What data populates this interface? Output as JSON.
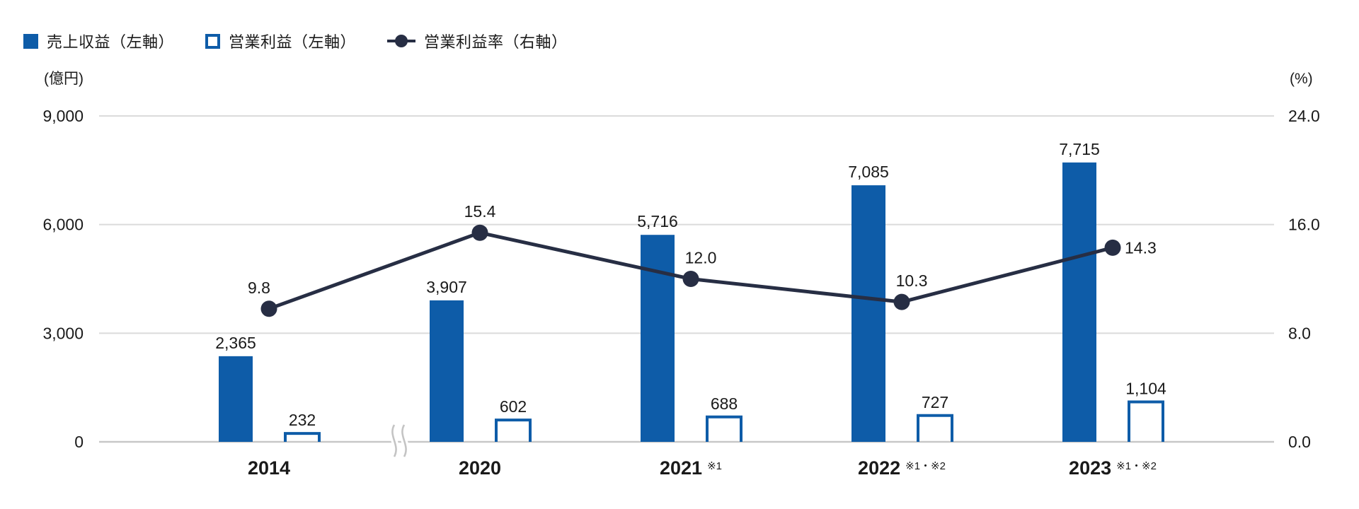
{
  "legend": {
    "items": [
      {
        "key": "revenue",
        "label": "売上収益（左軸）",
        "marker": "solid-square"
      },
      {
        "key": "profit",
        "label": "営業利益（左軸）",
        "marker": "outline-square"
      },
      {
        "key": "margin",
        "label": "営業利益率（右軸）",
        "marker": "line-dot"
      }
    ]
  },
  "chart_data": {
    "type": "bar-line-combo",
    "categories": [
      "2014",
      "2020",
      "2021",
      "2022",
      "2023"
    ],
    "category_notes": [
      "",
      "",
      "※1",
      "※1・※2",
      "※1・※2"
    ],
    "axis_break_after_index": 0,
    "left_axis": {
      "unit": "(億円)",
      "max": 9000,
      "min": 0,
      "ticks": [
        9000,
        6000,
        3000,
        0
      ],
      "tick_labels": [
        "9,000",
        "6,000",
        "3,000",
        "0"
      ]
    },
    "right_axis": {
      "unit": "(%)",
      "max": 24.0,
      "min": 0,
      "ticks": [
        24,
        16,
        8,
        0
      ],
      "tick_labels": [
        "24.0",
        "16.0",
        "8.0",
        "0.0"
      ]
    },
    "series": [
      {
        "key": "revenue",
        "name": "売上収益（左軸）",
        "type": "bar",
        "style": "solid",
        "axis": "left",
        "values": [
          2365,
          3907,
          5716,
          7085,
          7715
        ],
        "value_labels": [
          "2,365",
          "3,907",
          "5,716",
          "7,085",
          "7,715"
        ]
      },
      {
        "key": "profit",
        "name": "営業利益（左軸）",
        "type": "bar",
        "style": "outline",
        "axis": "left",
        "values": [
          232,
          602,
          688,
          727,
          1104
        ],
        "value_labels": [
          "232",
          "602",
          "688",
          "727",
          "1,104"
        ]
      },
      {
        "key": "margin",
        "name": "営業利益率（右軸）",
        "type": "line",
        "axis": "right",
        "values": [
          9.8,
          15.4,
          12.0,
          10.3,
          14.3
        ],
        "value_labels": [
          "9.8",
          "15.4",
          "12.0",
          "10.3",
          "14.3"
        ],
        "label_placements": [
          "above-left",
          "above",
          "above-right",
          "above-right",
          "right"
        ]
      }
    ],
    "grid": true,
    "legend_position": "top-left",
    "colors": {
      "bar_blue": "#0e5ca8",
      "line_navy": "#272e44",
      "grid": "#dbdbdb",
      "baseline": "#c7c7c7",
      "text": "#1a1a1a"
    }
  }
}
